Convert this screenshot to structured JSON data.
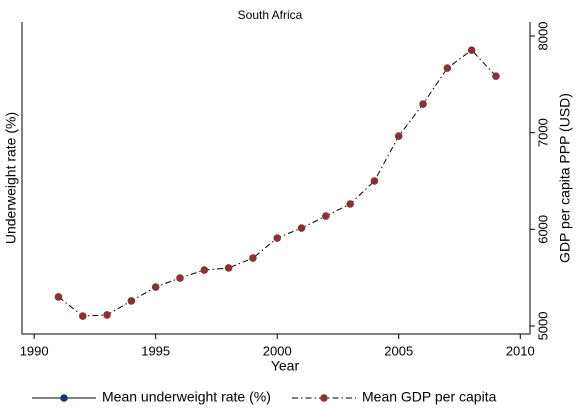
{
  "chart_data": {
    "type": "line",
    "title": "South Africa",
    "x_label": "Year",
    "y_label": "Underweight rate (%)",
    "y2_label": "GDP per capita PPP (USD)",
    "x": [
      1991,
      1992,
      1993,
      1994,
      1995,
      1996,
      1997,
      1998,
      1999,
      2000,
      2001,
      2002,
      2003,
      2004,
      2005,
      2006,
      2007,
      2008,
      2009
    ],
    "series": [
      {
        "name": "Mean underweight rate (%)",
        "color": "#1a3a6b",
        "axis": "y",
        "values": [
          null,
          null,
          null,
          null,
          null,
          null,
          null,
          null,
          null,
          null,
          null,
          null,
          null,
          null,
          null,
          null,
          null,
          null,
          null
        ]
      },
      {
        "name": "Mean GDP per capita",
        "color": "#8b3038",
        "axis": "y2",
        "values": [
          5300,
          5103,
          5114,
          5259,
          5403,
          5496,
          5579,
          5600,
          5703,
          5910,
          6013,
          6137,
          6262,
          6500,
          6965,
          7296,
          7668,
          7854,
          7585
        ]
      }
    ],
    "xlim": [
      1989.5,
      2010.4
    ],
    "xticks": [
      1990,
      1995,
      2000,
      2005,
      2010
    ],
    "y2lim": [
      4917,
      8145
    ],
    "y2ticks": [
      5000,
      6000,
      7000,
      8000
    ],
    "legend": "bottom"
  }
}
